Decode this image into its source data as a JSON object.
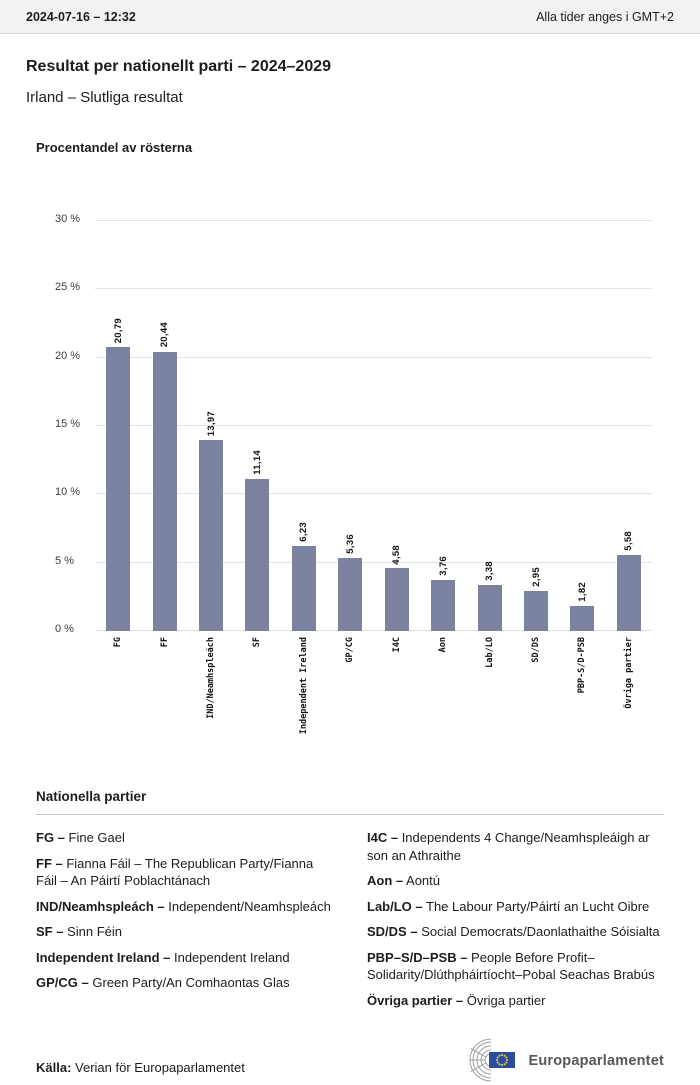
{
  "header": {
    "datetime": "2024-07-16 – 12:32",
    "timezone_note": "Alla tider anges i GMT+2"
  },
  "titles": {
    "main": "Resultat per nationellt parti – 2024–2029",
    "subtitle": "Irland – Slutliga resultat"
  },
  "chart_data": {
    "type": "bar",
    "title": "Procentandel av rösterna",
    "categories": [
      "FG",
      "FF",
      "IND/Neamhspleách",
      "SF",
      "Independent Ireland",
      "GP/CG",
      "I4C",
      "Aon",
      "Lab/LO",
      "SD/DS",
      "PBP-S/D-PSB",
      "Övriga partier"
    ],
    "values": [
      20.79,
      20.44,
      13.97,
      11.14,
      6.23,
      5.36,
      4.58,
      3.76,
      3.38,
      2.95,
      1.82,
      5.58
    ],
    "value_labels": [
      "20,79",
      "20,44",
      "13,97",
      "11,14",
      "6,23",
      "5,36",
      "4,58",
      "3,76",
      "3,38",
      "2,95",
      "1,82",
      "5,58"
    ],
    "ylim": [
      0,
      30
    ],
    "yticks": [
      {
        "value": 0,
        "label": "0 %"
      },
      {
        "value": 5,
        "label": "5 %"
      },
      {
        "value": 10,
        "label": "10 %"
      },
      {
        "value": 15,
        "label": "15 %"
      },
      {
        "value": 20,
        "label": "20 %"
      },
      {
        "value": 25,
        "label": "25 %"
      },
      {
        "value": 30,
        "label": "30 %"
      }
    ],
    "bar_color": "#7a82a0",
    "grid": true,
    "xlabel": "",
    "ylabel": ""
  },
  "parties": {
    "heading": "Nationella partier",
    "left": [
      {
        "abbr": "FG –",
        "name": "Fine Gael"
      },
      {
        "abbr": "FF –",
        "name": "Fianna Fáil – The Republican Party/Fianna Fáil – An Páirtí Poblachtánach"
      },
      {
        "abbr": "IND/Neamhspleách –",
        "name": "Independent/Neamhspleách"
      },
      {
        "abbr": "SF –",
        "name": "Sinn Féin"
      },
      {
        "abbr": "Independent Ireland –",
        "name": "Independent Ireland"
      },
      {
        "abbr": "GP/CG –",
        "name": "Green Party/An Comhaontas Glas"
      }
    ],
    "right": [
      {
        "abbr": "I4C –",
        "name": "Independents 4 Change/Neamhspleáigh ar son an Athraithe"
      },
      {
        "abbr": "Aon –",
        "name": "Aontú"
      },
      {
        "abbr": "Lab/LO –",
        "name": "The Labour Party/Páirtí an Lucht Oibre"
      },
      {
        "abbr": "SD/DS –",
        "name": "Social Democrats/Daonlathaithe Sóisialta"
      },
      {
        "abbr": "PBP–S/D–PSB –",
        "name": "People Before Profit–Solidarity/Dlúthpháirtíocht–Pobal Seachas Brabús"
      },
      {
        "abbr": "Övriga partier –",
        "name": "Övriga partier"
      }
    ]
  },
  "footer": {
    "source_label": "Källa:",
    "source_text": "Verian för Europaparlamentet",
    "logo_text": "Europaparlamentet"
  }
}
